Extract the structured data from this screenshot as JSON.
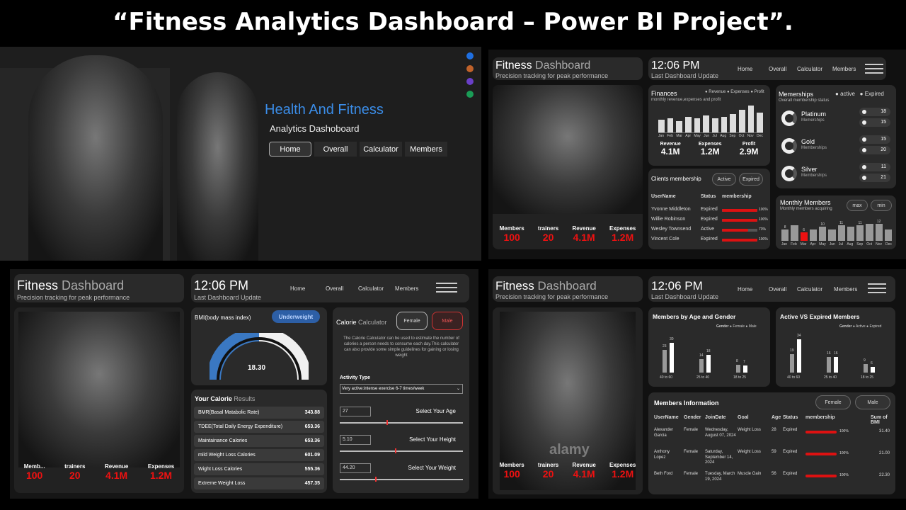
{
  "header": {
    "title": "“Fitness Analytics Dashboard – Power BI Project”."
  },
  "landing": {
    "title": "Health And Fitness",
    "subtitle": "Analytics Dashoboard",
    "nav": [
      "Home",
      "Overall",
      "Calculator",
      "Members"
    ],
    "dot_colors": [
      "#1f6fe0",
      "#c0622a",
      "#6a3fc8",
      "#1a9c56"
    ]
  },
  "common": {
    "brand1": "Fitness",
    "brand2": "Dashboard",
    "tagline": "Precision tracking for peak performance",
    "time": "12:06 PM",
    "time_sub": "Last Dashboard Update",
    "nav": [
      "Home",
      "Overall",
      "Calculator",
      "Members"
    ]
  },
  "overall": {
    "stats": [
      {
        "label": "Members",
        "value": "100"
      },
      {
        "label": "trainers",
        "value": "20"
      },
      {
        "label": "Revenue",
        "value": "4.1M"
      },
      {
        "label": "Expenses",
        "value": "1.2M"
      }
    ],
    "finances": {
      "title": "Finances",
      "sub": "monthly revenue,expenses and profit",
      "legend": [
        "Revenue",
        "Expenses",
        "Profit"
      ],
      "months": [
        "Jan",
        "Feb",
        "Mar",
        "Apr",
        "May",
        "Jun",
        "Jul",
        "Aug",
        "Sep",
        "Oct",
        "Nov",
        "Dec"
      ],
      "values": [
        0.45,
        0.5,
        0.4,
        0.55,
        0.5,
        0.6,
        0.5,
        0.55,
        0.65,
        0.8,
        0.95,
        0.7
      ],
      "kpis": [
        {
          "label": "Revenue",
          "value": "4.1M"
        },
        {
          "label": "Expenses",
          "value": "1.2M"
        },
        {
          "label": "Profit",
          "value": "2.9M"
        }
      ]
    },
    "memberships": {
      "title": "Memerships",
      "sub": "Overall membership status",
      "legend": [
        "active",
        "Expired"
      ],
      "tiers": [
        {
          "name": "Platinum",
          "sub": "Memerships",
          "active": "18",
          "expired": "15"
        },
        {
          "name": "Gold",
          "sub": "Memberships",
          "active": "15",
          "expired": "20"
        },
        {
          "name": "Silver",
          "sub": "Memberships",
          "active": "11",
          "expired": "21"
        }
      ]
    },
    "clients": {
      "title": "Clients membership",
      "buttons": [
        "Active",
        "Expired"
      ],
      "headers": [
        "UserName",
        "Status",
        "membership"
      ],
      "rows": [
        {
          "name": "Yvonne Middleton",
          "status": "Expired",
          "pct": "100%",
          "fill": 1
        },
        {
          "name": "Willie Robinson",
          "status": "Expired",
          "pct": "100%",
          "fill": 1
        },
        {
          "name": "Wesley Townsend",
          "status": "Active",
          "pct": "73%",
          "fill": 0.73
        },
        {
          "name": "Vincent Cole",
          "status": "Expired",
          "pct": "100%",
          "fill": 1
        }
      ]
    },
    "monthly": {
      "title": "Monthly Members",
      "sub": "Monthly members acquiring",
      "buttons": [
        "max",
        "min"
      ],
      "months": [
        "Jan",
        "Feb",
        "Mar",
        "Apr",
        "May",
        "Jun",
        "Jul",
        "Aug",
        "Sep",
        "Oct",
        "Nov",
        "Dec"
      ],
      "values": [
        8,
        11,
        6,
        8,
        10,
        8,
        11,
        10,
        11,
        12,
        12,
        8
      ],
      "labels": [
        "8",
        "",
        "6",
        "",
        "10",
        "",
        "11",
        "",
        "11",
        "",
        "12",
        ""
      ],
      "highlight": 2
    }
  },
  "calc": {
    "stats": [
      {
        "label": "Memb...",
        "value": "100"
      },
      {
        "label": "trainers",
        "value": "20"
      },
      {
        "label": "Revenue",
        "value": "4.1M"
      },
      {
        "label": "Expenses",
        "value": "1.2M"
      }
    ],
    "bmi": {
      "title": "BMI(body mass index)",
      "badge": "Underweight",
      "value": "18.30"
    },
    "results": {
      "title1": "Your Calorie",
      "title2": "Results",
      "rows": [
        {
          "label": "BMR(Basal Matabolic Rate)",
          "value": "343.88"
        },
        {
          "label": "TDEE(Total Daily Energy Expenditure)",
          "value": "653.36"
        },
        {
          "label": "Maintainance Calories",
          "value": "653.36"
        },
        {
          "label": "mild Weight Loss Calories",
          "value": "601.09"
        },
        {
          "label": "Wight Loss Calories",
          "value": "555.36"
        },
        {
          "label": "Extreme Weight Loss",
          "value": "457.35"
        }
      ]
    },
    "calculator": {
      "title1": "Calorie",
      "title2": "Calculator",
      "genders": [
        "Female",
        "Male"
      ],
      "desc": "The Calorie Calculator can be used to estimate the number of calories a person needs to consume each day.This calculator can also provide some simple guidelines for gaining or losing weight",
      "activity_label": "Activity Type",
      "activity_value": "Very active:intense exercise 6-7 times/week",
      "inputs": [
        {
          "value": "27",
          "label": "Select Your Age",
          "level": 0.38
        },
        {
          "value": "5.10",
          "label": "Select Your Height",
          "level": 0.45
        },
        {
          "value": "44.20",
          "label": "Select Your Weight",
          "level": 0.29
        }
      ]
    }
  },
  "members": {
    "stats": [
      {
        "label": "Members",
        "value": "100"
      },
      {
        "label": "trainers",
        "value": "20"
      },
      {
        "label": "Revenue",
        "value": "4.1M"
      },
      {
        "label": "Expenses",
        "value": "1.2M"
      }
    ],
    "watermark": "alamy",
    "age_gender": {
      "title": "Members by Age and Gender",
      "legend_title": "Gender",
      "legend": [
        "Female",
        "Male"
      ],
      "groups": [
        {
          "label": "40 to 60",
          "a": 23,
          "b": 30
        },
        {
          "label": "25 to 40",
          "a": 14,
          "b": 18
        },
        {
          "label": "18 to 25",
          "a": 8,
          "b": 7
        }
      ]
    },
    "active_expired": {
      "title": "Active VS Expired Members",
      "legend_title": "Gender",
      "legend": [
        "Active",
        "Expired"
      ],
      "groups": [
        {
          "label": "40 to 60",
          "a": 19,
          "b": 34
        },
        {
          "label": "25 to 40",
          "a": 16,
          "b": 16
        },
        {
          "label": "18 to 25",
          "a": 9,
          "b": 6
        }
      ]
    },
    "info": {
      "title": "Members Information",
      "buttons": [
        "Female",
        "Male"
      ],
      "headers": [
        "UserName",
        "Gender",
        "JoinDate",
        "Goal",
        "Age",
        "Status",
        "membership",
        "Sum of BMI"
      ],
      "rows": [
        {
          "name": "Alexander Garcia",
          "gender": "Female",
          "date": "Wednesday, August 07, 2024",
          "goal": "Weight Loss",
          "age": "28",
          "status": "Expired",
          "pct": "100%",
          "bmi": "31.40"
        },
        {
          "name": "Anthony Lopez",
          "gender": "Female",
          "date": "Saturday, September 14, 2024",
          "goal": "Weight Loss",
          "age": "59",
          "status": "Expired",
          "pct": "100%",
          "bmi": "21.00"
        },
        {
          "name": "Beth Ford",
          "gender": "Female",
          "date": "Tuesday, March 19, 2024",
          "goal": "Muscle Gain",
          "age": "56",
          "status": "Expired",
          "pct": "100%",
          "bmi": "22.30"
        }
      ]
    }
  }
}
